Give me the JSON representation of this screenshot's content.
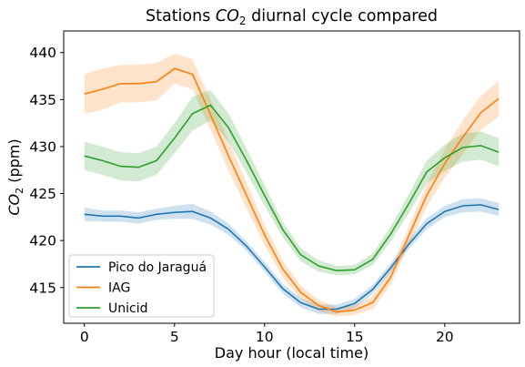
{
  "chart_data": {
    "type": "line",
    "title_prefix": "Stations ",
    "title_var": "CO",
    "title_sub": "2",
    "title_suffix": " diurnal cycle compared",
    "xlabel": "Day hour (local time)",
    "ylabel_var": "CO",
    "ylabel_sub": "2",
    "ylabel_suffix": " (ppm)",
    "xlim": [
      -1.15,
      24.15
    ],
    "ylim": [
      411.2,
      442.3
    ],
    "xticks": [
      0,
      5,
      10,
      15,
      20
    ],
    "yticks": [
      415,
      420,
      425,
      430,
      435,
      440
    ],
    "x": [
      0,
      1,
      2,
      3,
      4,
      5,
      6,
      7,
      8,
      9,
      10,
      11,
      12,
      13,
      14,
      15,
      16,
      17,
      18,
      19,
      20,
      21,
      22,
      23
    ],
    "grid": false,
    "legend_position": "lower-left",
    "series": [
      {
        "name": "Pico do Jaraguá",
        "color": "#1f77b4",
        "values": [
          422.8,
          422.6,
          422.6,
          422.4,
          422.8,
          423.0,
          423.1,
          422.4,
          421.2,
          419.4,
          417.2,
          414.9,
          413.4,
          412.7,
          412.7,
          413.3,
          414.8,
          417.1,
          419.6,
          421.8,
          423.1,
          423.7,
          423.8,
          423.3
        ],
        "band": [
          0.7,
          0.6,
          0.6,
          0.6,
          0.6,
          0.7,
          0.8,
          0.7,
          0.6,
          0.5,
          0.5,
          0.5,
          0.5,
          0.5,
          0.5,
          0.5,
          0.5,
          0.5,
          0.5,
          0.6,
          0.6,
          0.7,
          0.7,
          0.7
        ]
      },
      {
        "name": "IAG",
        "color": "#ff7f0e",
        "values": [
          435.6,
          436.1,
          436.7,
          436.7,
          436.9,
          438.3,
          437.7,
          433.4,
          429.0,
          424.8,
          420.6,
          417.0,
          414.5,
          413.1,
          412.4,
          412.6,
          413.4,
          416.1,
          420.5,
          424.8,
          428.2,
          431.0,
          433.6,
          435.1
        ],
        "band": [
          2.1,
          2.2,
          2.0,
          2.0,
          2.0,
          1.6,
          1.6,
          1.6,
          1.6,
          1.4,
          1.1,
          0.9,
          0.7,
          0.6,
          0.5,
          0.5,
          0.7,
          0.8,
          1.0,
          1.2,
          1.5,
          1.8,
          1.8,
          1.9
        ]
      },
      {
        "name": "Unicid",
        "color": "#2ca02c",
        "values": [
          429.0,
          428.5,
          427.9,
          427.8,
          428.5,
          430.9,
          433.5,
          434.4,
          432.0,
          428.5,
          424.8,
          421.2,
          418.5,
          417.3,
          416.8,
          416.9,
          418.0,
          420.7,
          423.9,
          427.3,
          428.8,
          429.9,
          430.1,
          429.4
        ],
        "band": [
          1.5,
          1.5,
          1.5,
          1.5,
          1.5,
          1.6,
          1.8,
          1.6,
          1.5,
          1.3,
          1.1,
          0.8,
          0.7,
          0.6,
          0.5,
          0.5,
          0.6,
          0.8,
          1.0,
          1.2,
          1.4,
          1.5,
          1.5,
          1.5
        ]
      }
    ]
  }
}
